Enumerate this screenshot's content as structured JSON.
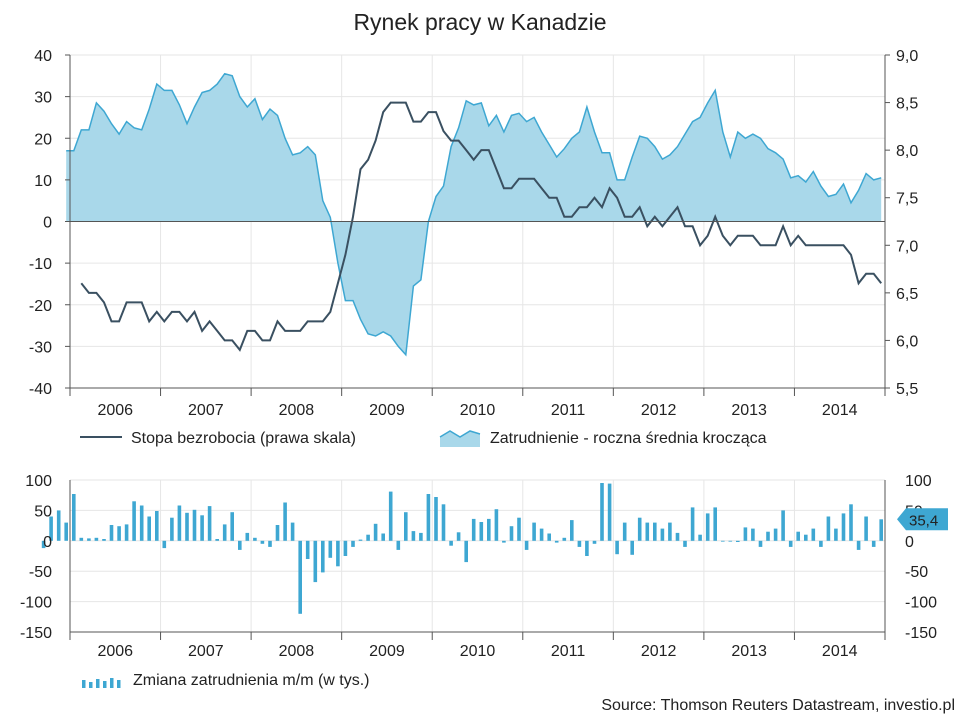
{
  "title": "Rynek pracy w Kanadzie",
  "source": "Source: Thomson Reuters Datastream, investio.pl",
  "colors": {
    "area_fill": "#a9d8ea",
    "area_line": "#3ea7d2",
    "unemployment_line": "#3a5061",
    "bars": "#3ea7d2",
    "axis": "#555555",
    "grid": "#e6e6e6"
  },
  "chart_data": [
    {
      "type": "line",
      "x_labels": [
        "2006",
        "2007",
        "2008",
        "2009",
        "2010",
        "2011",
        "2012",
        "2013",
        "2014"
      ],
      "x_range": [
        "2006-01",
        "2014-12"
      ],
      "y_left": {
        "ylim": [
          -40,
          40
        ],
        "ticks": [
          "40",
          "30",
          "20",
          "10",
          "0",
          "-10",
          "-20",
          "-30",
          "-40"
        ]
      },
      "y_right": {
        "ylim": [
          5.5,
          9.0
        ],
        "ticks": [
          "9,0",
          "8,5",
          "8,0",
          "7,5",
          "7,0",
          "6,5",
          "6,0",
          "5,5"
        ]
      },
      "series": [
        {
          "name": "Zatrudnienie - roczna średnia krocząca",
          "type": "area",
          "axis": "left",
          "values": [
            17,
            17,
            22,
            22,
            28.5,
            26.5,
            23.5,
            21,
            24,
            22.5,
            22,
            27,
            33,
            31.5,
            31.5,
            28,
            23.5,
            27.5,
            31,
            31.5,
            33,
            35.5,
            35,
            30,
            27.5,
            29.5,
            24.5,
            27,
            25.5,
            20,
            16,
            16.5,
            18,
            16,
            5,
            1,
            -10,
            -19,
            -19,
            -23.5,
            -27,
            -27.5,
            -26.5,
            -27.5,
            -30,
            -32,
            -15.5,
            -14,
            0,
            6,
            8.5,
            18,
            22.5,
            29,
            28,
            28.5,
            23,
            25.5,
            21.5,
            25.5,
            26,
            24,
            25,
            21.5,
            18.5,
            15.5,
            17.5,
            20,
            21.5,
            27.5,
            21.5,
            16.5,
            16.5,
            10,
            10,
            15.5,
            20.5,
            20,
            18,
            15,
            16,
            18,
            21,
            24,
            25,
            28.5,
            31.5,
            21.5,
            15.5,
            21.5,
            20,
            21,
            20,
            17.5,
            16.5,
            15,
            10.5,
            11,
            9.5,
            12,
            8.5,
            6,
            6.5,
            9,
            4.5,
            7.5,
            11.5,
            10,
            10.5
          ]
        },
        {
          "name": "Stopa bezrobocia (prawa skala)",
          "type": "line",
          "axis": "right",
          "values": [
            6.6,
            6.5,
            6.5,
            6.4,
            6.2,
            6.2,
            6.4,
            6.4,
            6.4,
            6.2,
            6.3,
            6.2,
            6.3,
            6.3,
            6.2,
            6.3,
            6.1,
            6.2,
            6.1,
            6.0,
            6.0,
            5.9,
            6.1,
            6.1,
            6.0,
            6.0,
            6.2,
            6.1,
            6.1,
            6.1,
            6.2,
            6.2,
            6.2,
            6.3,
            6.6,
            6.9,
            7.3,
            7.8,
            7.9,
            8.1,
            8.4,
            8.5,
            8.5,
            8.5,
            8.3,
            8.3,
            8.4,
            8.4,
            8.2,
            8.1,
            8.1,
            8.0,
            7.9,
            8.0,
            8.0,
            7.8,
            7.6,
            7.6,
            7.7,
            7.7,
            7.7,
            7.6,
            7.5,
            7.5,
            7.3,
            7.3,
            7.4,
            7.4,
            7.5,
            7.4,
            7.6,
            7.5,
            7.3,
            7.3,
            7.4,
            7.2,
            7.3,
            7.2,
            7.3,
            7.4,
            7.2,
            7.2,
            7.0,
            7.1,
            7.3,
            7.1,
            7.0,
            7.1,
            7.1,
            7.1,
            7.0,
            7.0,
            7.0,
            7.2,
            7.0,
            7.1,
            7.0,
            7.0,
            7.0,
            7.0,
            7.0,
            7.0,
            6.9,
            6.6,
            6.7,
            6.7,
            6.6
          ]
        }
      ]
    },
    {
      "type": "bar",
      "x_labels": [
        "2006",
        "2007",
        "2008",
        "2009",
        "2010",
        "2011",
        "2012",
        "2013",
        "2014"
      ],
      "x_range": [
        "2006-01",
        "2014-12"
      ],
      "ylim": [
        -150,
        100
      ],
      "y_ticks": [
        "100",
        "50",
        "0",
        "-50",
        "-100",
        "-150"
      ],
      "last_value_label": "35,4",
      "series": [
        {
          "name": "Zmiana zatrudnienia m/m (w tys.)",
          "values": [
            -12,
            40,
            50,
            30,
            77,
            5,
            4,
            5,
            3,
            26,
            24,
            27,
            65,
            58,
            40,
            49,
            -12,
            38,
            58,
            46,
            51,
            42,
            57,
            3,
            27,
            47,
            -15,
            13,
            5,
            -5,
            -10,
            26,
            63,
            30,
            -120,
            -30,
            -68,
            -52,
            -28,
            -42,
            -25,
            -10,
            2,
            10,
            28,
            12,
            81,
            -15,
            47,
            16,
            13,
            77,
            72,
            60,
            -8,
            14,
            -35,
            36,
            31,
            36,
            52,
            -3,
            24,
            38,
            -15,
            30,
            20,
            12,
            -3,
            5,
            34,
            -10,
            -25,
            -5,
            95,
            94,
            -22,
            30,
            -23,
            38,
            30,
            30,
            20,
            30,
            13,
            -10,
            55,
            10,
            45,
            55,
            0,
            0,
            -2,
            22,
            20,
            -10,
            15,
            20,
            50,
            -10,
            15,
            10,
            20,
            -10,
            40,
            20,
            45,
            60,
            -15,
            40,
            -10,
            35.4
          ]
        }
      ]
    }
  ],
  "legend": {
    "unemployment": "Stopa bezrobocia (prawa skala)",
    "employment": "Zatrudnienie - roczna średnia krocząca",
    "change": "Zmiana zatrudnienia m/m (w tys.)"
  }
}
